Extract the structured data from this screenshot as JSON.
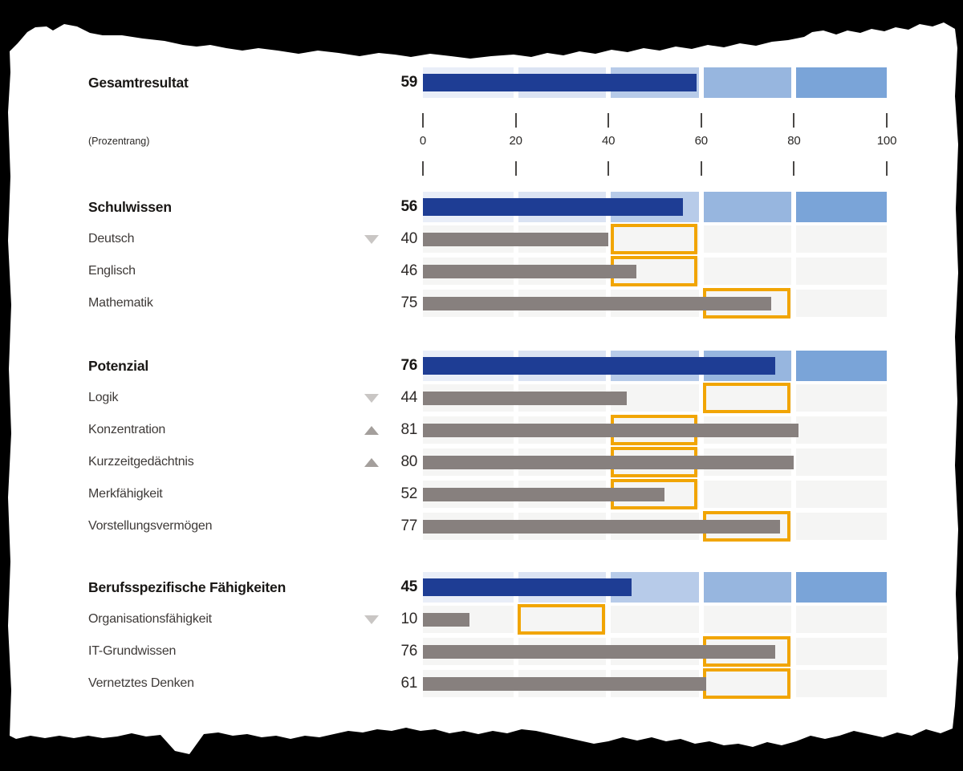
{
  "colors": {
    "background": "#000000",
    "paper": "#ffffff",
    "summary_bar": "#1e3d94",
    "detail_bar": "#87807e",
    "detail_cell": "#f5f5f4",
    "highlight_box": "#f1a504",
    "scale_cells_blue": [
      "#e9eef8",
      "#dbe3f3",
      "#b7cbe9",
      "#97b6df",
      "#7aa4d8"
    ],
    "trend_up_icon": "#a49f9c",
    "trend_down_icon": "#c9c6c4"
  },
  "chart_data": {
    "type": "bar",
    "orientation": "horizontal",
    "axis": {
      "label": "(Prozentrang)",
      "ticks": [
        0,
        20,
        40,
        60,
        80,
        100
      ],
      "range": [
        0,
        100
      ]
    },
    "groups": [
      {
        "label": "Gesamtresultat",
        "value": 59,
        "items": []
      },
      {
        "label": "Schulwissen",
        "value": 56,
        "items": [
          {
            "label": "Deutsch",
            "value": 40,
            "trend": "down",
            "highlight_range": [
              40,
              60
            ]
          },
          {
            "label": "Englisch",
            "value": 46,
            "trend": null,
            "highlight_range": [
              40,
              60
            ]
          },
          {
            "label": "Mathematik",
            "value": 75,
            "trend": null,
            "highlight_range": [
              60,
              80
            ]
          }
        ]
      },
      {
        "label": "Potenzial",
        "value": 76,
        "items": [
          {
            "label": "Logik",
            "value": 44,
            "trend": "down",
            "highlight_range": [
              60,
              80
            ]
          },
          {
            "label": "Konzentration",
            "value": 81,
            "trend": "up",
            "highlight_range": [
              40,
              60
            ]
          },
          {
            "label": "Kurzzeitgedächtnis",
            "value": 80,
            "trend": "up",
            "highlight_range": [
              40,
              60
            ]
          },
          {
            "label": "Merkfähigkeit",
            "value": 52,
            "trend": null,
            "highlight_range": [
              40,
              60
            ]
          },
          {
            "label": "Vorstellungsvermögen",
            "value": 77,
            "trend": null,
            "highlight_range": [
              60,
              80
            ]
          }
        ]
      },
      {
        "label": "Berufsspezifische Fähigkeiten",
        "value": 45,
        "items": [
          {
            "label": "Organisationsfähigkeit",
            "value": 10,
            "trend": "down",
            "highlight_range": [
              20,
              40
            ]
          },
          {
            "label": "IT-Grundwissen",
            "value": 76,
            "trend": null,
            "highlight_range": [
              60,
              80
            ]
          },
          {
            "label": "Vernetztes Denken",
            "value": 61,
            "trend": null,
            "highlight_range": [
              60,
              80
            ]
          }
        ]
      }
    ]
  }
}
